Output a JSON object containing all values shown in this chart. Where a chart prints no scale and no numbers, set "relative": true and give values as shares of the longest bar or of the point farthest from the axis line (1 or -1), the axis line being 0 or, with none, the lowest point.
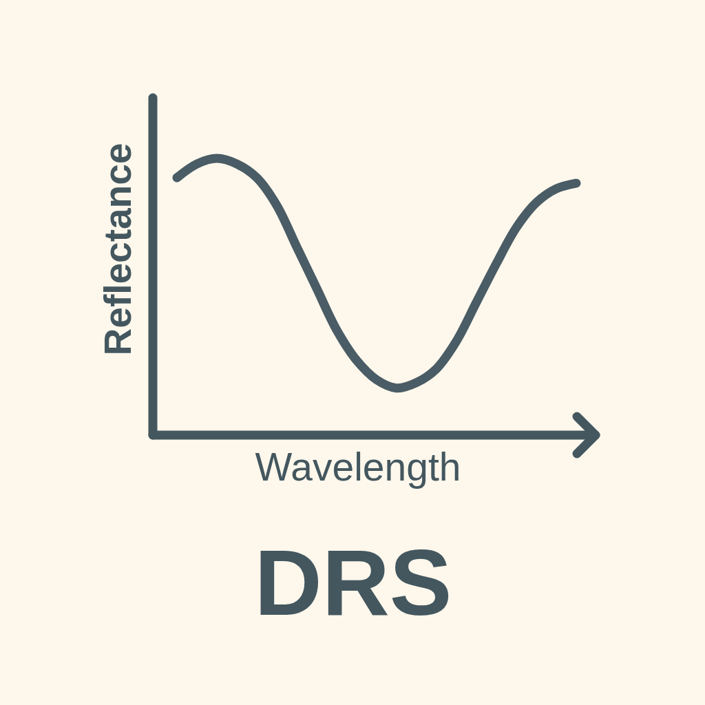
{
  "chart_data": {
    "type": "line",
    "title": "DRS",
    "xlabel": "Wavelength",
    "ylabel": "Reflectance",
    "relative": true,
    "categories": [
      null,
      null,
      null,
      null,
      null,
      null,
      null,
      null,
      null,
      null,
      null,
      null,
      null,
      null,
      null,
      null,
      null,
      null,
      null,
      null,
      null
    ],
    "series": [
      {
        "color": "#4a5c65",
        "values": [
          0.93,
          0.98,
          1.0,
          0.98,
          0.93,
          0.83,
          0.68,
          0.53,
          0.38,
          0.27,
          0.2,
          0.17,
          0.19,
          0.24,
          0.34,
          0.48,
          0.62,
          0.75,
          0.84,
          0.89,
          0.91
        ]
      }
    ]
  }
}
